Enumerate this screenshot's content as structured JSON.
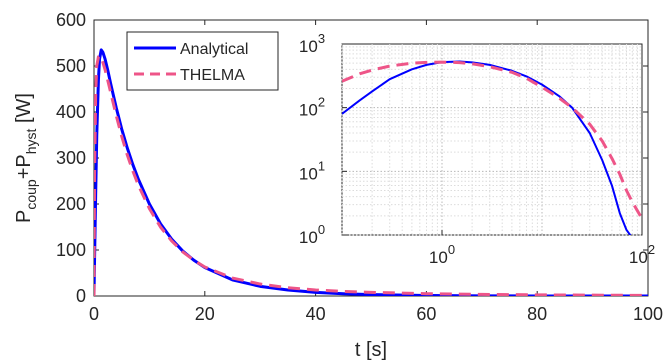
{
  "chart_data": [
    {
      "type": "line",
      "xlabel": "t [s]",
      "ylabel": "P_coup+P_hyst [W]",
      "ylabel_parts": {
        "main1": "P",
        "sub1": "coup",
        "plus": "+P",
        "sub2": "hyst",
        "unit": " [W]"
      },
      "xlim": [
        0,
        100
      ],
      "ylim": [
        0,
        600
      ],
      "x_ticks": [
        0,
        20,
        40,
        60,
        80,
        100
      ],
      "x_tick_labels": [
        "0",
        "20",
        "40",
        "60",
        "80",
        "100"
      ],
      "y_ticks": [
        0,
        100,
        200,
        300,
        400,
        500,
        600
      ],
      "y_tick_labels": [
        "0",
        "100",
        "200",
        "300",
        "400",
        "500",
        "600"
      ],
      "grid": false,
      "legend_position": "top-left",
      "series": [
        {
          "name": "Analytical",
          "color": "#0000ff",
          "style": "solid",
          "x": [
            0,
            0.1,
            0.3,
            0.5,
            0.8,
            1.0,
            1.3,
            1.6,
            2,
            2.5,
            3,
            4,
            5,
            6,
            7,
            8,
            10,
            12,
            14,
            16,
            18,
            20,
            25,
            30,
            35,
            40,
            45,
            50,
            60,
            70,
            80,
            90,
            100
          ],
          "y": [
            0,
            80,
            220,
            350,
            470,
            515,
            535,
            530,
            515,
            490,
            462,
            410,
            363,
            322,
            286,
            254,
            200,
            157,
            124,
            98,
            78,
            62,
            35,
            21,
            13,
            8,
            5,
            3,
            1,
            0.4,
            0.1,
            0,
            0
          ]
        },
        {
          "name": "THELMA",
          "color": "#ee5588",
          "style": "dashed",
          "x": [
            0,
            0.1,
            0.3,
            0.5,
            0.8,
            1.0,
            1.3,
            1.6,
            2,
            2.5,
            3,
            4,
            5,
            6,
            7,
            8,
            10,
            12,
            14,
            16,
            18,
            20,
            25,
            30,
            35,
            40,
            45,
            50,
            60,
            70,
            80,
            90,
            100
          ],
          "y": [
            0,
            260,
            440,
            500,
            520,
            522,
            518,
            508,
            492,
            468,
            443,
            393,
            347,
            307,
            272,
            241,
            190,
            150,
            120,
            96,
            78,
            63,
            39,
            26,
            18,
            13,
            10,
            8,
            5,
            3.5,
            2.5,
            1.8,
            1.3
          ]
        }
      ]
    },
    {
      "type": "line",
      "role": "inset",
      "xscale": "log",
      "yscale": "log",
      "xlim": [
        0.1,
        100
      ],
      "ylim": [
        1,
        1000
      ],
      "grid": true,
      "x_ticks": [
        1,
        100
      ],
      "x_tick_labels": [
        {
          "base": "10",
          "exp": "0"
        },
        {
          "base": "10",
          "exp": "2"
        }
      ],
      "y_ticks": [
        1,
        10,
        100,
        1000
      ],
      "y_tick_labels": [
        {
          "base": "10",
          "exp": "0"
        },
        {
          "base": "10",
          "exp": "1"
        },
        {
          "base": "10",
          "exp": "2"
        },
        {
          "base": "10",
          "exp": "3"
        }
      ],
      "series": [
        {
          "name": "Analytical",
          "color": "#0000ff",
          "style": "solid",
          "x": [
            0.1,
            0.15,
            0.2,
            0.3,
            0.5,
            0.7,
            1,
            1.5,
            2,
            3,
            5,
            7,
            10,
            15,
            20,
            30,
            40,
            50,
            60,
            70,
            80
          ],
          "y": [
            80,
            130,
            180,
            280,
            400,
            470,
            520,
            530,
            515,
            470,
            380,
            310,
            230,
            150,
            100,
            40,
            15,
            6,
            2.2,
            1.2,
            0.9
          ]
        },
        {
          "name": "THELMA",
          "color": "#ee5588",
          "style": "dashed",
          "x": [
            0.1,
            0.15,
            0.2,
            0.3,
            0.5,
            0.7,
            1,
            1.5,
            2,
            3,
            5,
            7,
            10,
            15,
            20,
            30,
            40,
            50,
            60,
            70,
            80,
            100
          ],
          "y": [
            260,
            340,
            390,
            450,
            500,
            515,
            520,
            510,
            490,
            440,
            360,
            290,
            210,
            140,
            100,
            55,
            30,
            16,
            9,
            5,
            3.3,
            1.8
          ]
        }
      ]
    }
  ]
}
